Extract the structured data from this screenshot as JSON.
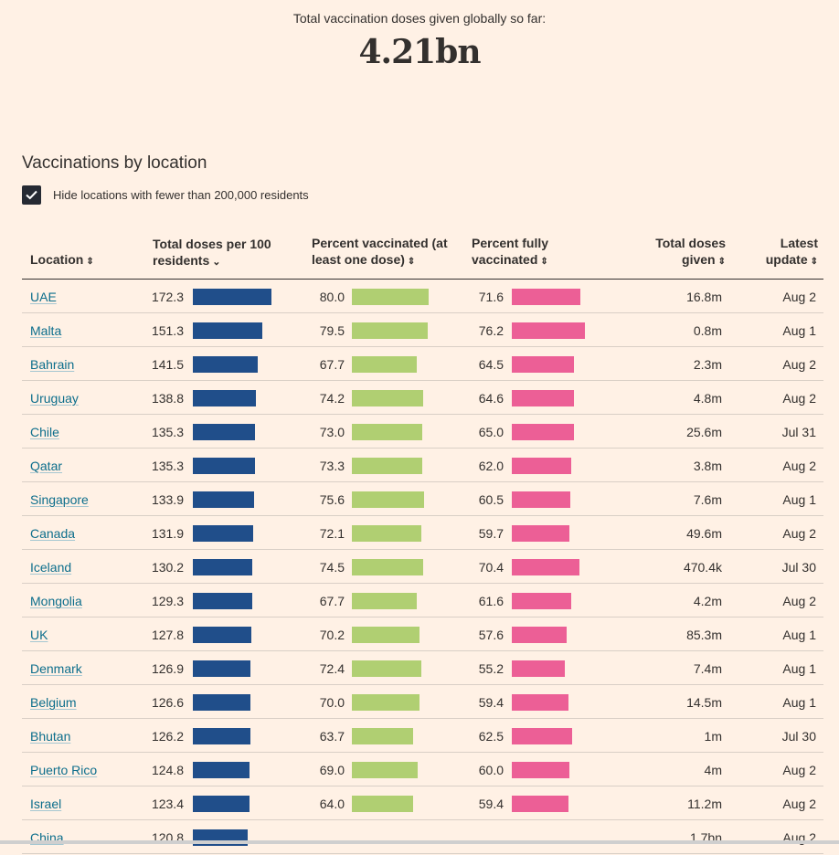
{
  "header": {
    "label": "Total vaccination doses given globally so far:",
    "total": "4.21bn"
  },
  "section_title": "Vaccinations by location",
  "filter": {
    "label": "Hide locations with fewer than 200,000 residents",
    "checked": true
  },
  "columns": {
    "location": "Location",
    "doses_per_100_line1": "Total doses per 100",
    "doses_per_100_line2": "residents",
    "pct_one_line1": "Percent vaccinated (at",
    "pct_one_line2": "least one dose)",
    "pct_full_line1": "Percent fully",
    "pct_full_line2": "vaccinated",
    "total_line1": "Total doses",
    "total_line2": "given",
    "update_line1": "Latest",
    "update_line2": "update"
  },
  "colors": {
    "doses": "#204e8a",
    "one_dose": "#b0cf72",
    "fully": "#ec5f96"
  },
  "chart_data": {
    "type": "table",
    "title": "Vaccinations by location",
    "sorted_by": "Total doses per 100 residents",
    "rows": [
      {
        "location": "UAE",
        "doses_per_100": "172.3",
        "pct_one_dose": "80.0",
        "pct_fully": "71.6",
        "total_doses": "16.8m",
        "latest_update": "Aug 2"
      },
      {
        "location": "Malta",
        "doses_per_100": "151.3",
        "pct_one_dose": "79.5",
        "pct_fully": "76.2",
        "total_doses": "0.8m",
        "latest_update": "Aug 1"
      },
      {
        "location": "Bahrain",
        "doses_per_100": "141.5",
        "pct_one_dose": "67.7",
        "pct_fully": "64.5",
        "total_doses": "2.3m",
        "latest_update": "Aug 2"
      },
      {
        "location": "Uruguay",
        "doses_per_100": "138.8",
        "pct_one_dose": "74.2",
        "pct_fully": "64.6",
        "total_doses": "4.8m",
        "latest_update": "Aug 2"
      },
      {
        "location": "Chile",
        "doses_per_100": "135.3",
        "pct_one_dose": "73.0",
        "pct_fully": "65.0",
        "total_doses": "25.6m",
        "latest_update": "Jul 31"
      },
      {
        "location": "Qatar",
        "doses_per_100": "135.3",
        "pct_one_dose": "73.3",
        "pct_fully": "62.0",
        "total_doses": "3.8m",
        "latest_update": "Aug 2"
      },
      {
        "location": "Singapore",
        "doses_per_100": "133.9",
        "pct_one_dose": "75.6",
        "pct_fully": "60.5",
        "total_doses": "7.6m",
        "latest_update": "Aug 1"
      },
      {
        "location": "Canada",
        "doses_per_100": "131.9",
        "pct_one_dose": "72.1",
        "pct_fully": "59.7",
        "total_doses": "49.6m",
        "latest_update": "Aug 2"
      },
      {
        "location": "Iceland",
        "doses_per_100": "130.2",
        "pct_one_dose": "74.5",
        "pct_fully": "70.4",
        "total_doses": "470.4k",
        "latest_update": "Jul 30"
      },
      {
        "location": "Mongolia",
        "doses_per_100": "129.3",
        "pct_one_dose": "67.7",
        "pct_fully": "61.6",
        "total_doses": "4.2m",
        "latest_update": "Aug 2"
      },
      {
        "location": "UK",
        "doses_per_100": "127.8",
        "pct_one_dose": "70.2",
        "pct_fully": "57.6",
        "total_doses": "85.3m",
        "latest_update": "Aug 1"
      },
      {
        "location": "Denmark",
        "doses_per_100": "126.9",
        "pct_one_dose": "72.4",
        "pct_fully": "55.2",
        "total_doses": "7.4m",
        "latest_update": "Aug 1"
      },
      {
        "location": "Belgium",
        "doses_per_100": "126.6",
        "pct_one_dose": "70.0",
        "pct_fully": "59.4",
        "total_doses": "14.5m",
        "latest_update": "Aug 1"
      },
      {
        "location": "Bhutan",
        "doses_per_100": "126.2",
        "pct_one_dose": "63.7",
        "pct_fully": "62.5",
        "total_doses": "1m",
        "latest_update": "Jul 30"
      },
      {
        "location": "Puerto Rico",
        "doses_per_100": "124.8",
        "pct_one_dose": "69.0",
        "pct_fully": "60.0",
        "total_doses": "4m",
        "latest_update": "Aug 2"
      },
      {
        "location": "Israel",
        "doses_per_100": "123.4",
        "pct_one_dose": "64.0",
        "pct_fully": "59.4",
        "total_doses": "11.2m",
        "latest_update": "Aug 2"
      },
      {
        "location": "China",
        "doses_per_100": "120.8",
        "pct_one_dose": "",
        "pct_fully": "",
        "total_doses": "1.7bn",
        "latest_update": "Aug 2"
      }
    ]
  }
}
